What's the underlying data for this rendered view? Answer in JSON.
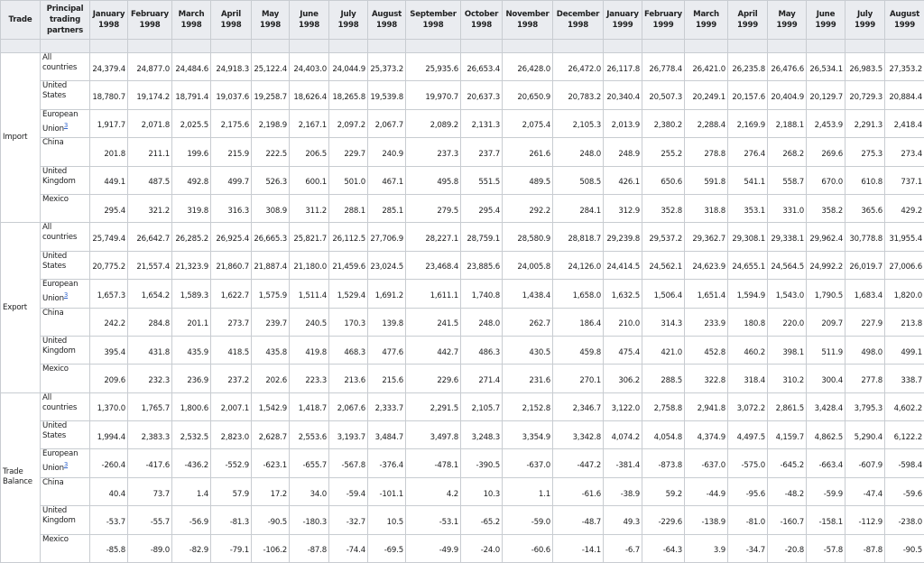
{
  "table": {
    "headers": [
      "Trade",
      "Principal trading partners",
      "January 1998",
      "February 1998",
      "March 1998",
      "April 1998",
      "May 1998",
      "June 1998",
      "July 1998",
      "August 1998",
      "September 1998",
      "October 1998",
      "November 1998",
      "December 1998",
      "January 1999",
      "February 1999",
      "March 1999",
      "April 1999",
      "May 1999",
      "June 1999",
      "July 1999",
      "August 1999"
    ],
    "sections": [
      {
        "trade": "Import",
        "rows": [
          {
            "partner": "All countries",
            "values": [
              "24,379.4",
              "24,877.0",
              "24,484.6",
              "24,918.3",
              "25,122.4",
              "24,403.0",
              "24,044.9",
              "25,373.2",
              "25,935.6",
              "26,653.4",
              "26,428.0",
              "26,472.0",
              "26,117.8",
              "26,778.4",
              "26,421.0",
              "26,235.8",
              "26,476.6",
              "26,534.1",
              "26,983.5",
              "27,353.2"
            ]
          },
          {
            "partner": "United States",
            "values": [
              "18,780.7",
              "19,174.2",
              "18,791.4",
              "19,037.6",
              "19,258.7",
              "18,626.4",
              "18,265.8",
              "19,539.8",
              "19,970.7",
              "20,637.3",
              "20,650.9",
              "20,783.2",
              "20,340.4",
              "20,507.3",
              "20,249.1",
              "20,157.6",
              "20,404.9",
              "20,129.7",
              "20,729.3",
              "20,884.4"
            ]
          },
          {
            "partner": "European Union",
            "note": "3",
            "values": [
              "1,917.7",
              "2,071.8",
              "2,025.5",
              "2,175.6",
              "2,198.9",
              "2,167.1",
              "2,097.2",
              "2,067.7",
              "2,089.2",
              "2,131.3",
              "2,075.4",
              "2,105.3",
              "2,013.9",
              "2,380.2",
              "2,288.4",
              "2,169.9",
              "2,188.1",
              "2,453.9",
              "2,291.3",
              "2,418.4"
            ]
          },
          {
            "partner": "China",
            "values": [
              "201.8",
              "211.1",
              "199.6",
              "215.9",
              "222.5",
              "206.5",
              "229.7",
              "240.9",
              "237.3",
              "237.7",
              "261.6",
              "248.0",
              "248.9",
              "255.2",
              "278.8",
              "276.4",
              "268.2",
              "269.6",
              "275.3",
              "273.4"
            ]
          },
          {
            "partner": "United Kingdom",
            "values": [
              "449.1",
              "487.5",
              "492.8",
              "499.7",
              "526.3",
              "600.1",
              "501.0",
              "467.1",
              "495.8",
              "551.5",
              "489.5",
              "508.5",
              "426.1",
              "650.6",
              "591.8",
              "541.1",
              "558.7",
              "670.0",
              "610.8",
              "737.1"
            ]
          },
          {
            "partner": "Mexico",
            "values": [
              "295.4",
              "321.2",
              "319.8",
              "316.3",
              "308.9",
              "311.2",
              "288.1",
              "285.1",
              "279.5",
              "295.4",
              "292.2",
              "284.1",
              "312.9",
              "352.8",
              "318.8",
              "353.1",
              "331.0",
              "358.2",
              "365.6",
              "429.2"
            ]
          }
        ]
      },
      {
        "trade": "Export",
        "rows": [
          {
            "partner": "All countries",
            "values": [
              "25,749.4",
              "26,642.7",
              "26,285.2",
              "26,925.4",
              "26,665.3",
              "25,821.7",
              "26,112.5",
              "27,706.9",
              "28,227.1",
              "28,759.1",
              "28,580.9",
              "28,818.7",
              "29,239.8",
              "29,537.2",
              "29,362.7",
              "29,308.1",
              "29,338.1",
              "29,962.4",
              "30,778.8",
              "31,955.4"
            ]
          },
          {
            "partner": "United States",
            "values": [
              "20,775.2",
              "21,557.4",
              "21,323.9",
              "21,860.7",
              "21,887.4",
              "21,180.0",
              "21,459.6",
              "23,024.5",
              "23,468.4",
              "23,885.6",
              "24,005.8",
              "24,126.0",
              "24,414.5",
              "24,562.1",
              "24,623.9",
              "24,655.1",
              "24,564.5",
              "24,992.2",
              "26,019.7",
              "27,006.6"
            ]
          },
          {
            "partner": "European Union",
            "note": "3",
            "values": [
              "1,657.3",
              "1,654.2",
              "1,589.3",
              "1,622.7",
              "1,575.9",
              "1,511.4",
              "1,529.4",
              "1,691.2",
              "1,611.1",
              "1,740.8",
              "1,438.4",
              "1,658.0",
              "1,632.5",
              "1,506.4",
              "1,651.4",
              "1,594.9",
              "1,543.0",
              "1,790.5",
              "1,683.4",
              "1,820.0"
            ]
          },
          {
            "partner": "China",
            "values": [
              "242.2",
              "284.8",
              "201.1",
              "273.7",
              "239.7",
              "240.5",
              "170.3",
              "139.8",
              "241.5",
              "248.0",
              "262.7",
              "186.4",
              "210.0",
              "314.3",
              "233.9",
              "180.8",
              "220.0",
              "209.7",
              "227.9",
              "213.8"
            ]
          },
          {
            "partner": "United Kingdom",
            "values": [
              "395.4",
              "431.8",
              "435.9",
              "418.5",
              "435.8",
              "419.8",
              "468.3",
              "477.6",
              "442.7",
              "486.3",
              "430.5",
              "459.8",
              "475.4",
              "421.0",
              "452.8",
              "460.2",
              "398.1",
              "511.9",
              "498.0",
              "499.1"
            ]
          },
          {
            "partner": "Mexico",
            "values": [
              "209.6",
              "232.3",
              "236.9",
              "237.2",
              "202.6",
              "223.3",
              "213.6",
              "215.6",
              "229.6",
              "271.4",
              "231.6",
              "270.1",
              "306.2",
              "288.5",
              "322.8",
              "318.4",
              "310.2",
              "300.4",
              "277.8",
              "338.7"
            ]
          }
        ]
      },
      {
        "trade": "Trade Balance",
        "rows": [
          {
            "partner": "All countries",
            "values": [
              "1,370.0",
              "1,765.7",
              "1,800.6",
              "2,007.1",
              "1,542.9",
              "1,418.7",
              "2,067.6",
              "2,333.7",
              "2,291.5",
              "2,105.7",
              "2,152.8",
              "2,346.7",
              "3,122.0",
              "2,758.8",
              "2,941.8",
              "3,072.2",
              "2,861.5",
              "3,428.4",
              "3,795.3",
              "4,602.2"
            ]
          },
          {
            "partner": "United States",
            "values": [
              "1,994.4",
              "2,383.3",
              "2,532.5",
              "2,823.0",
              "2,628.7",
              "2,553.6",
              "3,193.7",
              "3,484.7",
              "3,497.8",
              "3,248.3",
              "3,354.9",
              "3,342.8",
              "4,074.2",
              "4,054.8",
              "4,374.9",
              "4,497.5",
              "4,159.7",
              "4,862.5",
              "5,290.4",
              "6,122.2"
            ]
          },
          {
            "partner": "European Union",
            "note": "3",
            "values": [
              "-260.4",
              "-417.6",
              "-436.2",
              "-552.9",
              "-623.1",
              "-655.7",
              "-567.8",
              "-376.4",
              "-478.1",
              "-390.5",
              "-637.0",
              "-447.2",
              "-381.4",
              "-873.8",
              "-637.0",
              "-575.0",
              "-645.2",
              "-663.4",
              "-607.9",
              "-598.4"
            ]
          },
          {
            "partner": "China",
            "values": [
              "40.4",
              "73.7",
              "1.4",
              "57.9",
              "17.2",
              "34.0",
              "-59.4",
              "-101.1",
              "4.2",
              "10.3",
              "1.1",
              "-61.6",
              "-38.9",
              "59.2",
              "-44.9",
              "-95.6",
              "-48.2",
              "-59.9",
              "-47.4",
              "-59.6"
            ]
          },
          {
            "partner": "United Kingdom",
            "values": [
              "-53.7",
              "-55.7",
              "-56.9",
              "-81.3",
              "-90.5",
              "-180.3",
              "-32.7",
              "10.5",
              "-53.1",
              "-65.2",
              "-59.0",
              "-48.7",
              "49.3",
              "-229.6",
              "-138.9",
              "-81.0",
              "-160.7",
              "-158.1",
              "-112.9",
              "-238.0"
            ]
          },
          {
            "partner": "Mexico",
            "values": [
              "-85.8",
              "-89.0",
              "-82.9",
              "-79.1",
              "-106.2",
              "-87.8",
              "-74.4",
              "-69.5",
              "-49.9",
              "-24.0",
              "-60.6",
              "-14.1",
              "-6.7",
              "-64.3",
              "3.9",
              "-34.7",
              "-20.8",
              "-57.8",
              "-87.8",
              "-90.5"
            ]
          }
        ]
      }
    ]
  }
}
